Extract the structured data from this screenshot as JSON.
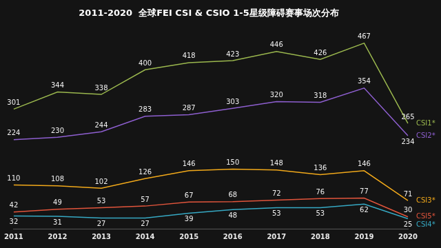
{
  "chart_data": {
    "type": "line",
    "title": "2011-2020  全球FEI CSI & CSIO 1-5星级障碍赛事场次分布",
    "categories": [
      "2011",
      "2012",
      "2013",
      "2014",
      "2015",
      "2016",
      "2017",
      "2018",
      "2019",
      "2020"
    ],
    "series": [
      {
        "name": "CSI1*",
        "color": "#9bb84e",
        "values": [
          301,
          344,
          338,
          400,
          418,
          423,
          446,
          426,
          467,
          265
        ]
      },
      {
        "name": "CSI2*",
        "color": "#8e5fd0",
        "values": [
          224,
          230,
          244,
          283,
          287,
          303,
          320,
          318,
          354,
          234
        ]
      },
      {
        "name": "CSI3*",
        "color": "#f2a91a",
        "values": [
          110,
          108,
          102,
          126,
          146,
          150,
          148,
          136,
          146,
          71
        ]
      },
      {
        "name": "CSI4*",
        "color": "#36a9c4",
        "values": [
          32,
          31,
          27,
          27,
          39,
          48,
          53,
          53,
          62,
          25
        ]
      },
      {
        "name": "CSI5*",
        "color": "#e2553c",
        "values": [
          42,
          49,
          53,
          57,
          67,
          68,
          72,
          76,
          77,
          30
        ]
      }
    ],
    "ylim": [
      0,
      500
    ],
    "grid": false,
    "data_labels": true,
    "tick_labels": "x"
  }
}
